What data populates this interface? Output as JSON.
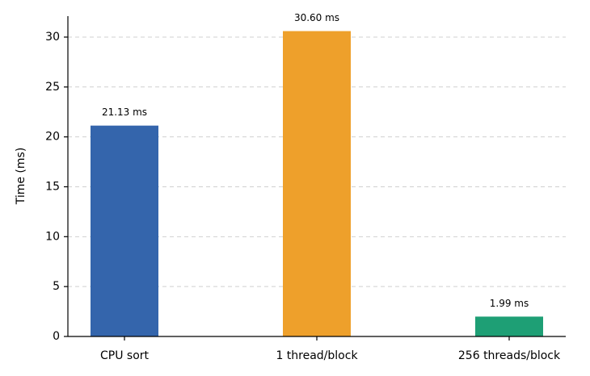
{
  "chart_data": {
    "type": "bar",
    "ylabel": "Time (ms)",
    "categories": [
      "CPU sort",
      "1 thread/block",
      "256 threads/block"
    ],
    "values": [
      21.13,
      30.6,
      1.99
    ],
    "value_labels": [
      "21.13 ms",
      "30.60 ms",
      "1.99 ms"
    ],
    "colors": [
      "#3465ac",
      "#eea02b",
      "#1e9f75"
    ],
    "ylim": [
      0,
      32.1
    ],
    "yticks": [
      0,
      5,
      10,
      15,
      20,
      25,
      30
    ],
    "grid": true
  }
}
